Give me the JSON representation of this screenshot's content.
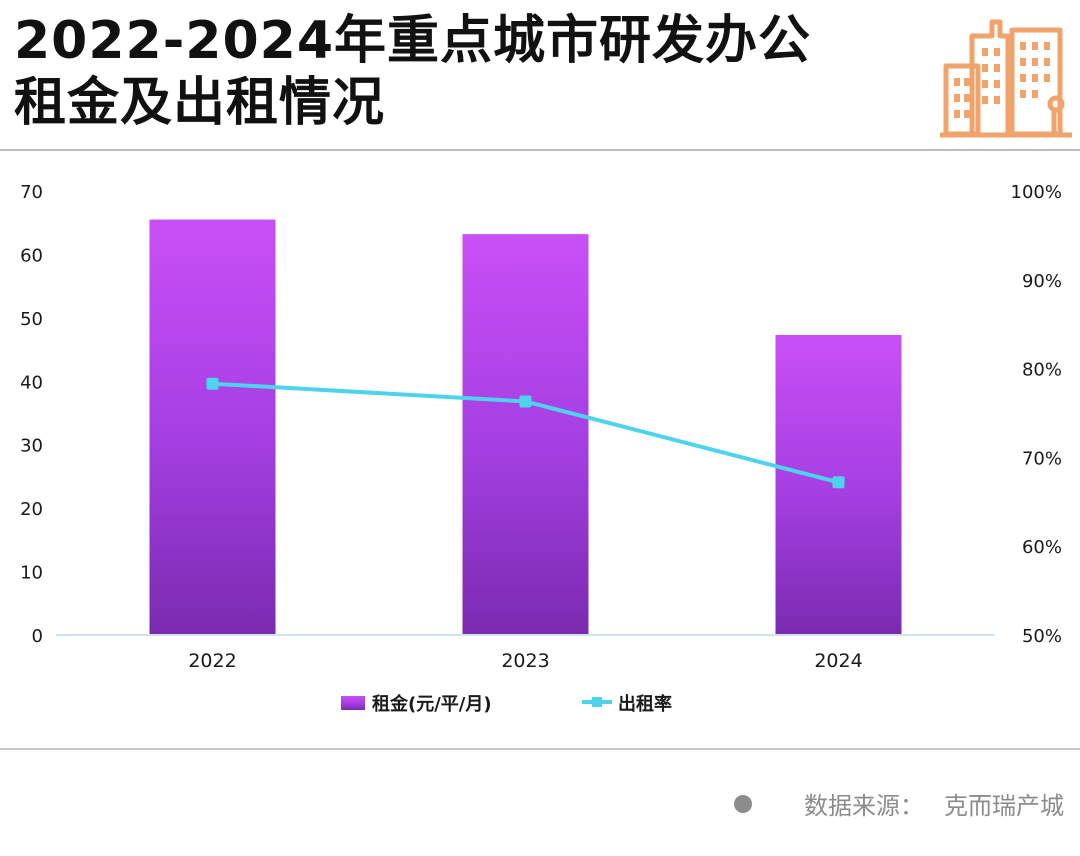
{
  "header": {
    "title_line1": "2022-2024年重点城市研发办公",
    "title_line2": "租金及出租情况",
    "icon": "city-buildings-icon",
    "icon_color": "#f0a36a"
  },
  "chart_data": {
    "type": "bar",
    "categories": [
      "2022",
      "2023",
      "2024"
    ],
    "series": [
      {
        "name": "租金(元/平/月)",
        "type": "bar",
        "axis": "left",
        "values": [
          65.5,
          63.2,
          47.3
        ],
        "color": "#c24cf5"
      },
      {
        "name": "出租率",
        "type": "line",
        "axis": "right",
        "values": [
          78.3,
          76.3,
          67.2
        ],
        "unit": "%",
        "color": "#4dd4ec"
      }
    ],
    "left_axis": {
      "min": 0,
      "max": 70,
      "ticks": [
        "0",
        "10",
        "20",
        "30",
        "40",
        "50",
        "60",
        "70"
      ]
    },
    "right_axis": {
      "min": 50,
      "max": 100,
      "ticks": [
        "50%",
        "60%",
        "70%",
        "80%",
        "90%",
        "100%"
      ]
    },
    "legend": {
      "position": "bottom"
    },
    "grid": false
  },
  "footer": {
    "source_label": "数据来源：",
    "source_value": "克而瑞产城"
  }
}
